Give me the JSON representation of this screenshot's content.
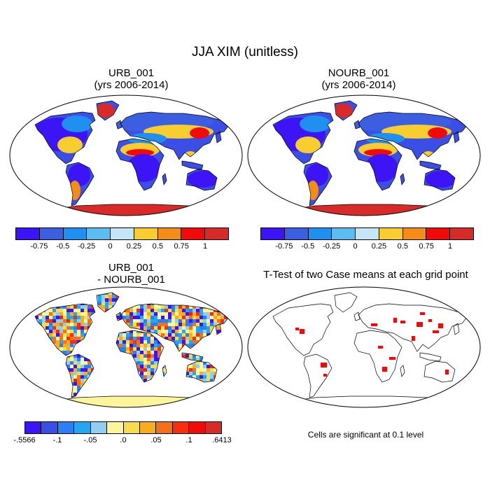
{
  "figure": {
    "title": "JJA XIM (unitless)"
  },
  "panels": [
    {
      "id": "urb",
      "title_line1": "URB_001",
      "title_line2": "(yrs 2006-2014)"
    },
    {
      "id": "nourb",
      "title_line1": "NOURB_001",
      "title_line2": "(yrs 2006-2014)"
    },
    {
      "id": "diff",
      "title_line1": "URB_001",
      "title_line2": "- NOURB_001"
    },
    {
      "id": "ttest",
      "title_line1": "T-Test of two Case means at each grid point"
    }
  ],
  "colorbar_abs": {
    "colors": [
      "#3c14f5",
      "#3b5fe0",
      "#1f8ff0",
      "#5bbdf0",
      "#c4e6f5",
      "#f7cd2f",
      "#f48d17",
      "#f00a0a",
      "#d92a2a"
    ],
    "labels": [
      "-0.75",
      "-0.5",
      "-0.25",
      "0",
      "0.25",
      "0.5",
      "0.75",
      "1"
    ]
  },
  "colorbar_diff": {
    "colors": [
      "#3c14f5",
      "#3b4ee6",
      "#2b7ff2",
      "#25a6f2",
      "#8fd0f2",
      "#fdf59a",
      "#f7dc4b",
      "#f6ad1e",
      "#f5701a",
      "#f5300f",
      "#f00a0a",
      "#d92a2a"
    ],
    "labels": [
      "-.5566",
      "-.1",
      "-.05",
      ".0",
      ".05",
      ".1",
      ".6413"
    ]
  },
  "significance_note": "Cells are significant at 0.1 level",
  "palette": {
    "ocean": "#ffffff",
    "coast": "#000000",
    "land_blue": "#3b4ee6",
    "antarctica_abs": "#d92a2a",
    "antarctica_diff": "#fdf59a",
    "significant": "#f00a0a"
  }
}
